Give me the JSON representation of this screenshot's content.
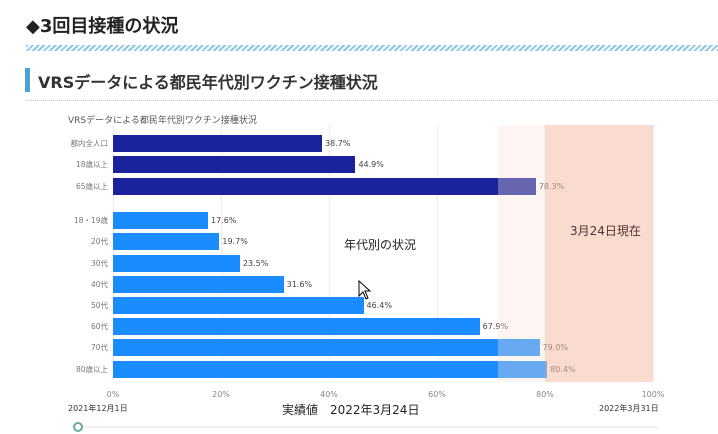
{
  "header": {
    "title": "◆3回目接種の状況",
    "section_title": "VRSデータによる都民年代別ワクチン接種状況"
  },
  "chart_data": {
    "type": "bar",
    "orientation": "horizontal",
    "title": "VRSデータによる都民年代別ワクチン接種状況",
    "categories": [
      "都内全人口",
      "18歳以上",
      "65歳以上",
      "18・19歳",
      "20代",
      "30代",
      "40代",
      "50代",
      "60代",
      "70代",
      "80歳以上"
    ],
    "values": [
      38.7,
      44.9,
      78.3,
      17.6,
      19.7,
      23.5,
      31.6,
      46.4,
      67.9,
      79.0,
      80.4
    ],
    "labels": [
      "38.7%",
      "44.9%",
      "78.3%",
      "17.6%",
      "19.7%",
      "23.5%",
      "31.6%",
      "46.4%",
      "67.9%",
      "79.0%",
      "80.4%"
    ],
    "xticks": [
      "0%",
      "20%",
      "40%",
      "60%",
      "80%",
      "100%"
    ],
    "xlim": [
      0,
      100
    ],
    "annotations": {
      "group_label": "年代別の状況",
      "current_label": "3月24日現在"
    },
    "colors": {
      "overall": "#1a239b",
      "age": "#1a8cff",
      "shade_light": "#fdf0ec",
      "shade_dark": "#f8d8c9"
    }
  },
  "timeline": {
    "start": "2021年12月1日",
    "current": "実績値　2022年3月24日",
    "end": "2022年3月31日"
  }
}
